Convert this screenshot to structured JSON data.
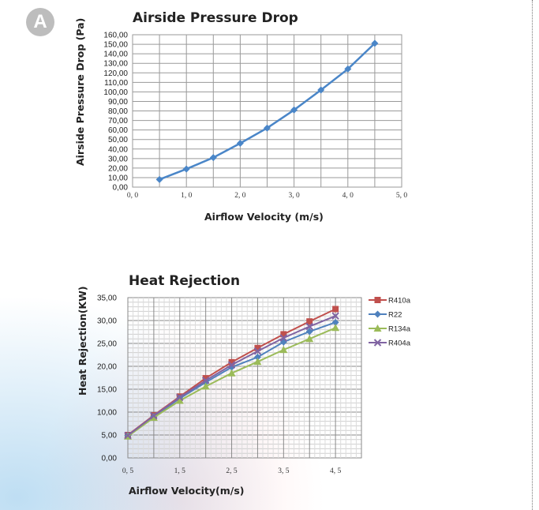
{
  "panel_label": "A",
  "colors": {
    "badge_bg": "#bdbdbd",
    "grid": "#9a9a9a",
    "plot_border": "#999999"
  },
  "chart_data": [
    {
      "type": "line",
      "title": "Airside Pressure Drop",
      "xlabel": "Airflow Velocity (m/s)",
      "ylabel": "Airside Pressure Drop (Pa)",
      "xlim": [
        0,
        5
      ],
      "ylim": [
        0,
        160
      ],
      "x_ticks": [
        "0, 0",
        "1, 0",
        "2, 0",
        "3, 0",
        "4, 0",
        "5, 0"
      ],
      "y_ticks": [
        "0,00",
        "10,00",
        "20,00",
        "30,00",
        "40,00",
        "50,00",
        "60,00",
        "70,00",
        "80,00",
        "90,00",
        "100,00",
        "110,00",
        "120,00",
        "130,00",
        "140,00",
        "150,00",
        "160,00"
      ],
      "grid": true,
      "series": [
        {
          "color": "#4a86c8",
          "marker": "diamond",
          "x": [
            0.5,
            1.0,
            1.5,
            2.0,
            2.5,
            3.0,
            3.5,
            4.0,
            4.5
          ],
          "y": [
            8,
            19,
            31,
            46,
            62,
            81,
            102,
            124,
            151
          ]
        }
      ]
    },
    {
      "type": "line",
      "title": "Heat Rejection",
      "xlabel": "Airflow Velocity(m/s)",
      "ylabel": "Heat Rejection(KW)",
      "xlim": [
        0.5,
        5.0
      ],
      "ylim": [
        0,
        35
      ],
      "x_ticks": [
        "0, 5",
        "1, 5",
        "2, 5",
        "3, 5",
        "4, 5"
      ],
      "y_ticks": [
        "0,00",
        "5,00",
        "10,00",
        "15,00",
        "20,00",
        "25,00",
        "30,00",
        "35,00"
      ],
      "grid": true,
      "legend": "right",
      "x": [
        0.5,
        1.0,
        1.5,
        2.0,
        2.5,
        3.0,
        3.5,
        4.0,
        4.5
      ],
      "series": [
        {
          "name": "R410a",
          "color": "#c0504d",
          "marker": "square",
          "y": [
            5.0,
            9.3,
            13.4,
            17.4,
            20.9,
            24.0,
            27.0,
            29.8,
            32.5
          ]
        },
        {
          "name": "R22",
          "color": "#4f81bd",
          "marker": "diamond",
          "y": [
            4.9,
            9.0,
            13.0,
            16.5,
            19.8,
            22.0,
            25.3,
            27.6,
            29.6
          ]
        },
        {
          "name": "R134a",
          "color": "#9bbb59",
          "marker": "triangle",
          "y": [
            4.7,
            8.8,
            12.5,
            15.6,
            18.5,
            21.0,
            23.6,
            26.0,
            28.4
          ]
        },
        {
          "name": "R404a",
          "color": "#8064a2",
          "marker": "x",
          "y": [
            4.9,
            9.2,
            13.2,
            16.9,
            20.3,
            23.3,
            26.2,
            28.7,
            31.0
          ]
        }
      ]
    }
  ]
}
